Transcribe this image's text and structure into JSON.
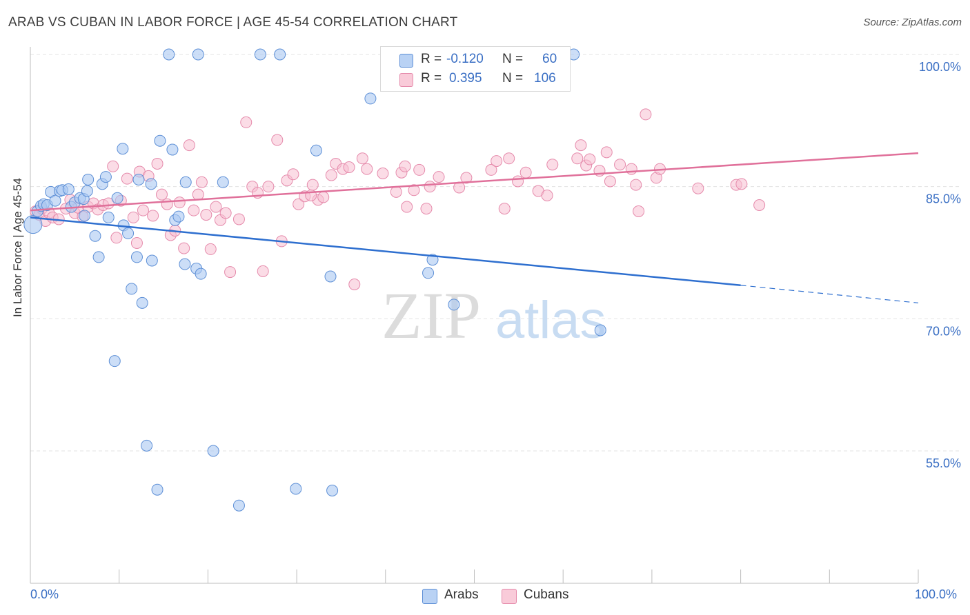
{
  "header": {
    "title": "ARAB VS CUBAN IN LABOR FORCE | AGE 45-54 CORRELATION CHART",
    "source": "Source: ZipAtlas.com"
  },
  "legend": {
    "rows": [
      {
        "r_label": "R =",
        "r_value": "-0.120",
        "n_label": "N =",
        "n_value": "60"
      },
      {
        "r_label": "R =",
        "r_value": "0.395",
        "n_label": "N =",
        "n_value": "106"
      }
    ]
  },
  "bottom_legend": {
    "arabs": "Arabs",
    "cubans": "Cubans"
  },
  "axes": {
    "y_title": "In Labor Force | Age 45-54",
    "x_min_label": "0.0%",
    "x_max_label": "100.0%",
    "y_ticks": [
      "100.0%",
      "85.0%",
      "70.0%",
      "55.0%"
    ]
  },
  "watermark": {
    "zip": "ZIP",
    "atlas": "atlas"
  },
  "colors": {
    "arab_fill": "#aac8f2",
    "arab_stroke": "#5d8fd6",
    "arab_line": "#2e6fcf",
    "cuban_fill": "#f7bfd1",
    "cuban_stroke": "#e58aab",
    "cuban_line": "#e0709a",
    "tick_label": "#3a6fc4"
  },
  "chart_data": {
    "type": "scatter",
    "title": "ARAB VS CUBAN IN LABOR FORCE | AGE 45-54 CORRELATION CHART",
    "xlabel": "",
    "ylabel": "In Labor Force | Age 45-54",
    "xlim": [
      0,
      100
    ],
    "ylim": [
      40,
      100.5
    ],
    "yticks": [
      100,
      85,
      70,
      55
    ],
    "grid": true,
    "legend_position": "top-center",
    "series": [
      {
        "name": "Arabs",
        "r": -0.12,
        "n": 60,
        "trend": {
          "x0": 0,
          "y0": 81.5,
          "x1": 80,
          "y1": 73.8,
          "dashed_to_x": 100,
          "dashed_to_y": 71.8
        },
        "points": [
          [
            0.3,
            80.7
          ],
          [
            0.8,
            82.2
          ],
          [
            1.2,
            82.8
          ],
          [
            1.5,
            83.0
          ],
          [
            1.9,
            82.9
          ],
          [
            2.3,
            84.4
          ],
          [
            2.8,
            83.4
          ],
          [
            3.3,
            84.5
          ],
          [
            3.6,
            84.6
          ],
          [
            4.3,
            84.7
          ],
          [
            4.6,
            82.7
          ],
          [
            5.0,
            83.2
          ],
          [
            5.6,
            83.7
          ],
          [
            6.0,
            83.6
          ],
          [
            6.4,
            84.5
          ],
          [
            6.1,
            81.7
          ],
          [
            6.5,
            85.8
          ],
          [
            7.3,
            79.4
          ],
          [
            7.7,
            77.0
          ],
          [
            8.1,
            85.3
          ],
          [
            8.5,
            86.1
          ],
          [
            8.8,
            81.5
          ],
          [
            9.5,
            65.2
          ],
          [
            9.8,
            83.7
          ],
          [
            10.4,
            89.3
          ],
          [
            10.5,
            80.6
          ],
          [
            11.0,
            79.7
          ],
          [
            11.4,
            73.4
          ],
          [
            12.0,
            77.0
          ],
          [
            12.2,
            85.8
          ],
          [
            12.6,
            71.8
          ],
          [
            13.1,
            55.6
          ],
          [
            13.6,
            85.3
          ],
          [
            13.7,
            76.6
          ],
          [
            14.3,
            50.6
          ],
          [
            14.6,
            90.2
          ],
          [
            15.6,
            100.0
          ],
          [
            16.0,
            89.2
          ],
          [
            16.3,
            81.2
          ],
          [
            16.7,
            81.6
          ],
          [
            17.4,
            76.2
          ],
          [
            17.5,
            85.5
          ],
          [
            18.7,
            75.7
          ],
          [
            18.9,
            100.0
          ],
          [
            19.2,
            75.1
          ],
          [
            20.6,
            55.0
          ],
          [
            21.7,
            85.5
          ],
          [
            23.5,
            48.8
          ],
          [
            25.9,
            100.0
          ],
          [
            28.1,
            100.0
          ],
          [
            29.9,
            50.7
          ],
          [
            32.2,
            89.1
          ],
          [
            33.8,
            74.8
          ],
          [
            34.0,
            50.5
          ],
          [
            38.3,
            95.0
          ],
          [
            44.8,
            75.2
          ],
          [
            45.3,
            76.7
          ],
          [
            47.7,
            71.6
          ],
          [
            61.2,
            100.0
          ],
          [
            64.2,
            68.7
          ]
        ]
      },
      {
        "name": "Cubans",
        "r": 0.395,
        "n": 106,
        "trend": {
          "x0": 0,
          "y0": 82.3,
          "x1": 100,
          "y1": 88.8
        },
        "points": [
          [
            0.6,
            82.2
          ],
          [
            1.0,
            81.8
          ],
          [
            1.3,
            82.5
          ],
          [
            1.7,
            81.1
          ],
          [
            2.1,
            82.0
          ],
          [
            2.5,
            81.5
          ],
          [
            3.2,
            81.3
          ],
          [
            4.0,
            82.5
          ],
          [
            4.5,
            83.5
          ],
          [
            5.0,
            82.0
          ],
          [
            5.4,
            82.6
          ],
          [
            5.9,
            81.6
          ],
          [
            6.5,
            82.7
          ],
          [
            7.1,
            83.1
          ],
          [
            7.6,
            82.4
          ],
          [
            8.2,
            82.9
          ],
          [
            8.8,
            83.1
          ],
          [
            9.3,
            87.3
          ],
          [
            9.7,
            79.2
          ],
          [
            10.2,
            83.4
          ],
          [
            10.9,
            85.9
          ],
          [
            11.6,
            81.5
          ],
          [
            12.0,
            78.6
          ],
          [
            12.3,
            86.7
          ],
          [
            12.7,
            82.3
          ],
          [
            13.3,
            86.2
          ],
          [
            13.8,
            81.7
          ],
          [
            14.3,
            87.6
          ],
          [
            14.8,
            84.1
          ],
          [
            15.4,
            83.0
          ],
          [
            15.8,
            79.5
          ],
          [
            16.3,
            80.0
          ],
          [
            16.8,
            83.2
          ],
          [
            17.3,
            78.0
          ],
          [
            17.9,
            89.7
          ],
          [
            18.4,
            82.3
          ],
          [
            18.9,
            84.1
          ],
          [
            19.3,
            85.5
          ],
          [
            19.8,
            81.8
          ],
          [
            20.3,
            77.9
          ],
          [
            20.9,
            82.7
          ],
          [
            21.4,
            81.2
          ],
          [
            22.0,
            82.0
          ],
          [
            22.5,
            75.3
          ],
          [
            23.5,
            81.3
          ],
          [
            24.3,
            92.3
          ],
          [
            25.0,
            85.0
          ],
          [
            25.6,
            84.3
          ],
          [
            26.2,
            75.4
          ],
          [
            26.8,
            85.0
          ],
          [
            27.8,
            90.3
          ],
          [
            28.3,
            78.8
          ],
          [
            28.9,
            85.7
          ],
          [
            29.6,
            86.4
          ],
          [
            30.2,
            83.0
          ],
          [
            30.9,
            83.9
          ],
          [
            31.8,
            85.2
          ],
          [
            32.4,
            83.5
          ],
          [
            33.0,
            83.8
          ],
          [
            33.9,
            86.3
          ],
          [
            34.4,
            87.6
          ],
          [
            35.2,
            87.0
          ],
          [
            35.9,
            87.2
          ],
          [
            36.5,
            73.9
          ],
          [
            37.4,
            88.2
          ],
          [
            37.9,
            87.0
          ],
          [
            39.7,
            86.5
          ],
          [
            41.2,
            84.4
          ],
          [
            41.8,
            86.6
          ],
          [
            42.2,
            87.3
          ],
          [
            42.4,
            82.7
          ],
          [
            43.2,
            84.6
          ],
          [
            43.8,
            86.9
          ],
          [
            44.6,
            82.5
          ],
          [
            45.0,
            85.0
          ],
          [
            48.3,
            84.9
          ],
          [
            49.1,
            86.0
          ],
          [
            51.9,
            86.9
          ],
          [
            52.5,
            87.9
          ],
          [
            53.4,
            82.5
          ],
          [
            53.9,
            88.2
          ],
          [
            54.9,
            85.6
          ],
          [
            55.8,
            86.6
          ],
          [
            57.2,
            84.5
          ],
          [
            58.8,
            87.5
          ],
          [
            61.6,
            88.2
          ],
          [
            62.0,
            89.7
          ],
          [
            62.6,
            87.4
          ],
          [
            63.0,
            88.1
          ],
          [
            64.1,
            86.8
          ],
          [
            64.9,
            88.9
          ],
          [
            65.3,
            85.6
          ],
          [
            67.7,
            87.0
          ],
          [
            68.2,
            85.2
          ],
          [
            68.5,
            82.2
          ],
          [
            69.3,
            93.2
          ],
          [
            70.5,
            86.0
          ],
          [
            70.9,
            87.0
          ],
          [
            75.2,
            84.8
          ],
          [
            79.5,
            85.2
          ],
          [
            80.1,
            85.3
          ],
          [
            82.1,
            82.9
          ],
          [
            31.6,
            84.0
          ],
          [
            46.0,
            86.1
          ],
          [
            58.2,
            84.0
          ],
          [
            66.4,
            87.5
          ]
        ]
      }
    ]
  }
}
